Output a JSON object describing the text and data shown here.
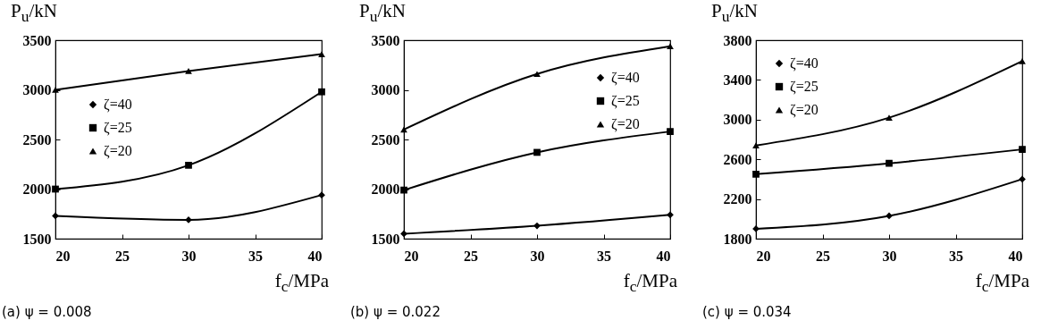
{
  "chart_data": [
    {
      "type": "line",
      "title": "(a) ψ = 0.008",
      "xlabel": "f$_{c}$/MPa",
      "ylabel": "P$_{u}$/kN",
      "x": [
        20,
        30,
        40
      ],
      "xlim": [
        20,
        40
      ],
      "xticks": [
        20,
        25,
        30,
        35,
        40
      ],
      "ylim": [
        1500,
        3500
      ],
      "yticks": [
        1500,
        2000,
        2500,
        3000,
        3500
      ],
      "grid": false,
      "legend": "left",
      "line_style": "solid",
      "series": [
        {
          "name": "ζ=40",
          "color": "#000000",
          "marker": "diamond",
          "values": [
            1730,
            1690,
            1940
          ]
        },
        {
          "name": "ζ=25",
          "color": "#000000",
          "marker": "square",
          "values": [
            2000,
            2240,
            2980
          ]
        },
        {
          "name": "ζ=20",
          "color": "#000000",
          "marker": "triangle",
          "values": [
            3000,
            3190,
            3360
          ]
        }
      ]
    },
    {
      "type": "line",
      "title": "(b) ψ = 0.022",
      "xlabel": "f$_{c}$/MPa",
      "ylabel": "P$_{u}$/kN",
      "x": [
        20,
        30,
        40
      ],
      "xlim": [
        20,
        40
      ],
      "xticks": [
        20,
        25,
        30,
        35,
        40
      ],
      "ylim": [
        1500,
        3500
      ],
      "yticks": [
        1500,
        2000,
        2500,
        3000,
        3500
      ],
      "grid": false,
      "legend": "top right",
      "line_style": "solid",
      "series": [
        {
          "name": "ζ=40",
          "color": "#000000",
          "marker": "diamond",
          "values": [
            1550,
            1630,
            1740
          ]
        },
        {
          "name": "ζ=25",
          "color": "#000000",
          "marker": "square",
          "values": [
            1990,
            2370,
            2580
          ]
        },
        {
          "name": "ζ=20",
          "color": "#000000",
          "marker": "triangle",
          "values": [
            2600,
            3160,
            3440
          ]
        }
      ]
    },
    {
      "type": "line",
      "title": "(c) ψ = 0.034",
      "xlabel": "f$_{c}$/MPa",
      "ylabel": "P$_{u}$/kN",
      "x": [
        20,
        30,
        40
      ],
      "xlim": [
        20,
        40
      ],
      "xticks": [
        20,
        25,
        30,
        35,
        40
      ],
      "ylim": [
        1800,
        3800
      ],
      "yticks": [
        1800,
        2200,
        2600,
        3000,
        3400,
        3800
      ],
      "grid": false,
      "legend": "top left",
      "line_style": "solid",
      "series": [
        {
          "name": "ζ=40",
          "color": "#000000",
          "marker": "diamond",
          "values": [
            1900,
            2030,
            2400
          ]
        },
        {
          "name": "ζ=25",
          "color": "#000000",
          "marker": "square",
          "values": [
            2450,
            2560,
            2700
          ]
        },
        {
          "name": "ζ=20",
          "color": "#000000",
          "marker": "triangle",
          "values": [
            2740,
            3020,
            3590
          ]
        }
      ]
    }
  ]
}
